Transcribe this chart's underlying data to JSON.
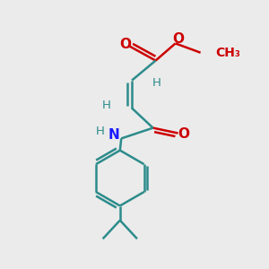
{
  "bg_color": "#ebebeb",
  "bond_color": "#2d8b8b",
  "oxygen_color": "#cc0000",
  "nitrogen_color": "#1a1aff",
  "line_width": 1.8,
  "figsize": [
    3.0,
    3.0
  ],
  "dpi": 100,
  "xlim": [
    0,
    10
  ],
  "ylim": [
    0,
    10
  ]
}
